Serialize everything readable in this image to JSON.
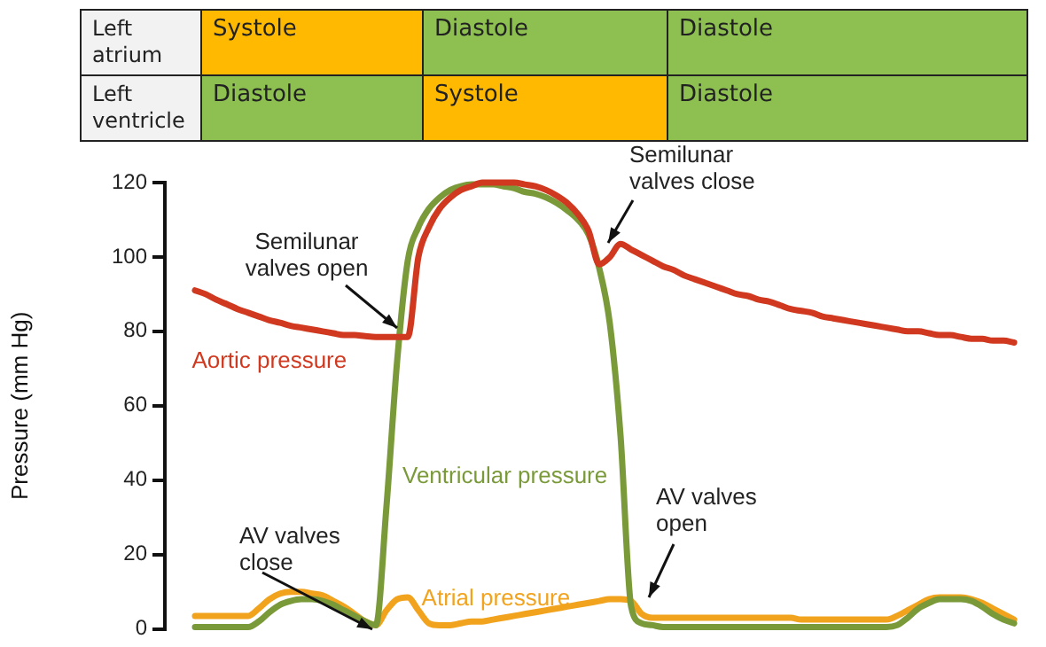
{
  "chart_data": {
    "type": "line",
    "ylabel": "Pressure (mm Hg)",
    "categories": [
      null,
      null,
      null,
      null,
      null,
      null,
      null,
      null,
      null,
      null,
      null,
      null,
      null,
      null,
      null,
      null,
      null,
      null,
      null,
      null,
      null,
      null,
      null,
      null,
      null,
      null,
      null,
      null,
      null,
      null,
      null,
      null,
      null,
      null,
      null,
      null,
      null,
      null,
      null,
      null,
      null,
      null,
      null,
      null,
      null,
      null,
      null,
      null,
      null,
      null,
      null,
      null,
      null,
      null,
      null,
      null,
      null,
      null,
      null,
      null,
      null,
      null,
      null,
      null,
      null,
      null,
      null,
      null,
      null,
      null,
      null,
      null,
      null,
      null,
      null,
      null,
      null,
      null
    ],
    "series": [
      {
        "name": "Aortic pressure",
        "color": "#d0391f",
        "values": [
          91,
          90,
          88.5,
          87.3,
          86,
          85,
          84,
          83,
          82.3,
          81.5,
          81,
          80.5,
          80,
          79.5,
          79,
          79,
          78.7,
          78.5,
          78.5,
          78.5,
          78.5,
          100,
          108,
          113,
          116,
          118,
          119,
          120,
          120,
          120,
          120,
          119.5,
          119,
          118,
          116.5,
          114.5,
          111.5,
          107,
          98,
          100,
          103.5,
          102,
          100.5,
          99,
          97.5,
          96.5,
          95,
          94,
          93,
          92,
          91,
          90,
          89.5,
          88.5,
          88,
          87,
          86,
          85.5,
          85,
          84,
          83.5,
          83,
          82.5,
          82,
          81.5,
          81,
          80.5,
          80,
          80,
          79.5,
          79,
          79,
          78.5,
          78,
          78,
          77.5,
          77.5,
          77
        ]
      },
      {
        "name": "Ventricular pressure",
        "color": "#7a9a3a",
        "values": [
          0.5,
          0.5,
          0.5,
          0.5,
          0.5,
          0.5,
          2,
          4.5,
          6.5,
          7.5,
          8,
          8,
          7.5,
          6.5,
          5,
          3.5,
          2,
          1,
          33,
          72,
          99,
          108,
          113,
          116,
          118,
          119,
          119.5,
          119.5,
          119.5,
          119,
          118.5,
          117.5,
          117,
          116,
          114.5,
          112.5,
          110,
          106,
          97,
          82,
          52,
          6,
          1.5,
          1,
          0.5,
          0.5,
          0.5,
          0.5,
          0.5,
          0.5,
          0.5,
          0.5,
          0.5,
          0.5,
          0.5,
          0.5,
          0.5,
          0.5,
          0.5,
          0.5,
          0.5,
          0.5,
          0.5,
          0.5,
          0.5,
          0.5,
          1,
          3,
          5.5,
          7,
          8,
          8,
          8,
          7.5,
          6,
          4,
          2.5,
          1.5
        ]
      },
      {
        "name": "Atrial pressure",
        "color": "#f2a31d",
        "values": [
          3.5,
          3.5,
          3.5,
          3.5,
          3.5,
          3.5,
          5.5,
          8,
          9.5,
          10,
          10,
          9.5,
          9,
          7.5,
          6,
          4,
          2,
          1,
          5,
          8,
          8.5,
          5,
          1.5,
          1,
          1,
          1.5,
          2,
          2,
          2.5,
          3,
          3.5,
          4,
          4.5,
          5,
          5.5,
          6,
          6.5,
          7,
          7.5,
          8,
          8,
          7.5,
          4,
          3,
          3,
          3,
          3,
          3,
          3,
          3,
          3,
          3,
          3,
          3,
          3,
          3,
          3,
          2.5,
          2.5,
          2.5,
          2.5,
          2.5,
          2.5,
          2.5,
          2.5,
          2.5,
          3.5,
          5,
          6.5,
          8,
          8.5,
          8.5,
          8.5,
          8,
          7,
          5.5,
          4,
          2.5
        ]
      }
    ],
    "annotations": [
      "Semilunar valves open",
      "Semilunar valves close",
      "AV valves close",
      "AV valves open",
      "Left atrium",
      "Systole",
      "Diastole",
      "Diastole",
      "Left ventricle",
      "Diastole",
      "Systole",
      "Diastole"
    ],
    "ylim": [
      0,
      120
    ],
    "yticks": [
      0,
      20,
      40,
      60,
      80,
      100,
      120
    ],
    "tick_labels": "y",
    "grid": false,
    "legend": false,
    "marker": "none",
    "line_style": "solid"
  }
}
